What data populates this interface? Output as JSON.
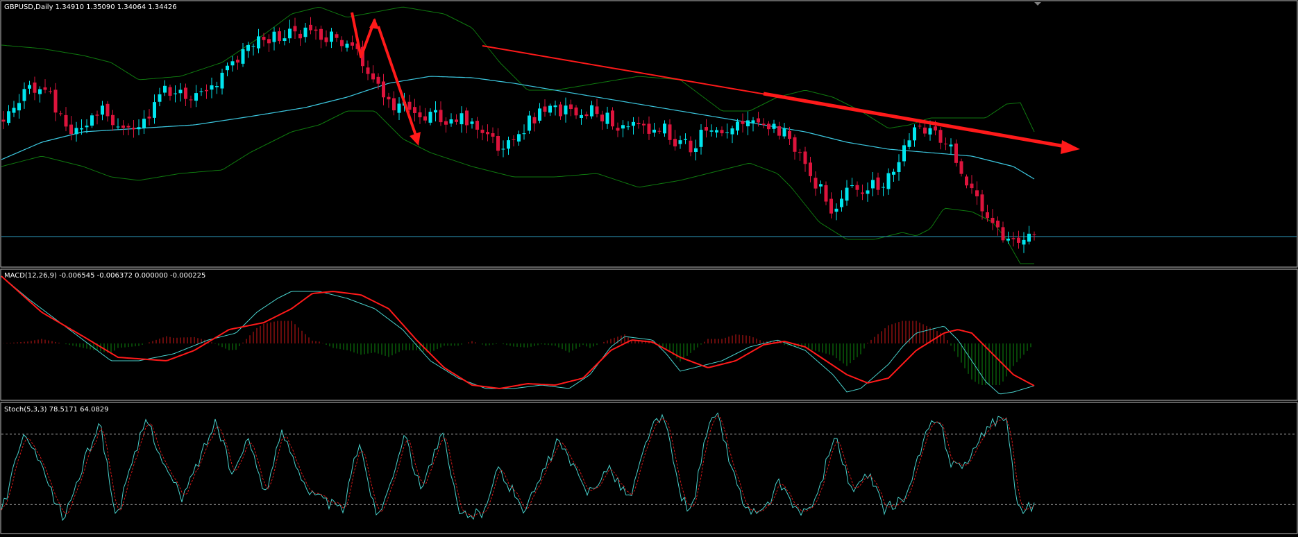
{
  "colors": {
    "background": "#000000",
    "frame": "#c0c0c0",
    "bull_candle": "#00e5ee",
    "bear_candle": "#dc143c",
    "ma_line": "#3cc8e0",
    "bollinger": "#0f7a0f",
    "level_line": "#2e9cc0",
    "trend_arrow": "#ff1a1a",
    "macd_line": "#48d1cc",
    "signal_line": "#ff1a1a",
    "hist_pos": "#d01818",
    "hist_neg": "#0e8a0e",
    "stoch_main": "#48d1cc",
    "stoch_signal": "#d01818",
    "stoch_levels": "#b0b0b0",
    "label_text": "#ffffff"
  },
  "panels": {
    "price": {
      "label": "GBPUSD,Daily  1.34910 1.35090 1.34064 1.34426"
    },
    "macd": {
      "label": "MACD(12,26,9) -0.006545 -0.006372 0.000000 -0.000225"
    },
    "stoch": {
      "label": "Stoch(5,3,3) 78.5171 64.0829"
    }
  },
  "chart_data": [
    {
      "type": "candlestick",
      "symbol": "GBPUSD",
      "timeframe": "Daily",
      "ohlc_last": {
        "open": 1.3491,
        "high": 1.3509,
        "low": 1.34064,
        "close": 1.34426
      },
      "ylim": [
        1.34,
        1.42
      ],
      "horizontal_level": 1.349,
      "indicators": [
        "moving average",
        "bollinger bands"
      ],
      "annotations": [
        "zigzag arrows near the top",
        "descending trend arrow"
      ]
    },
    {
      "type": "line",
      "name": "MACD",
      "params": [
        12,
        26,
        9
      ],
      "values_last": {
        "main": -0.006545,
        "signal": -0.006372,
        "a": 0.0,
        "b": -0.000225
      }
    },
    {
      "type": "line",
      "name": "Stochastic",
      "params": [
        5,
        3,
        3
      ],
      "values_last": {
        "main": 78.5171,
        "signal": 64.0829
      },
      "levels": [
        80,
        20
      ],
      "ylim": [
        0,
        100
      ]
    }
  ]
}
